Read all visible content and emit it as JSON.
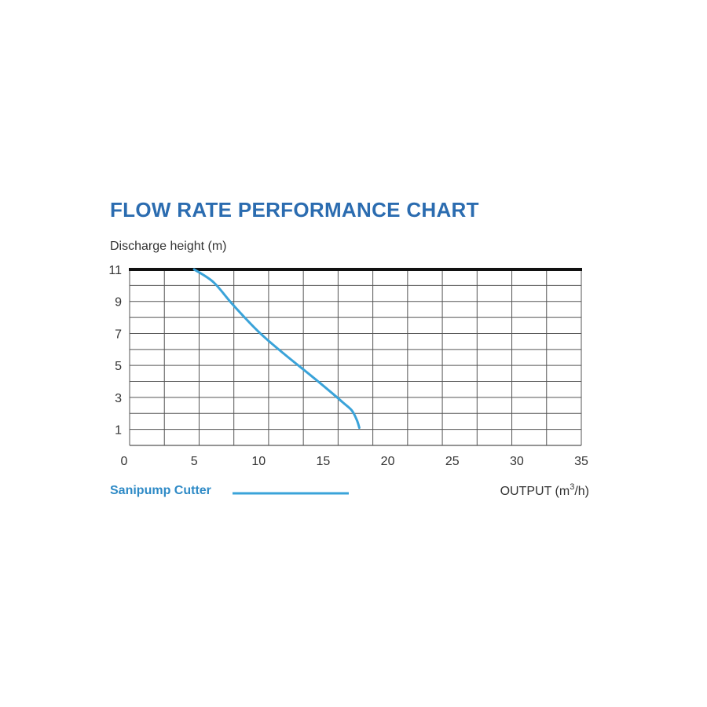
{
  "chart_data": {
    "type": "line",
    "title": "FLOW RATE PERFORMANCE CHART",
    "ylabel": "Discharge height (m)",
    "xlabel_main": "OUTPUT (m",
    "xlabel_sup": "3",
    "xlabel_end": "/h)",
    "xlim": [
      0,
      35
    ],
    "ylim": [
      0,
      11
    ],
    "x_ticks": [
      0,
      5,
      10,
      15,
      20,
      25,
      30,
      35
    ],
    "x_tick_labels": [
      "0",
      "5",
      "10",
      "15",
      "20",
      "25",
      "30",
      "35"
    ],
    "y_ticks": [
      1,
      3,
      5,
      7,
      9,
      11
    ],
    "y_tick_labels": [
      "1",
      "3",
      "5",
      "7",
      "9",
      "11"
    ],
    "grid": true,
    "series": [
      {
        "name": "Sanipump Cutter",
        "color": "#3aa3d9",
        "x": [
          5.0,
          6.5,
          8.0,
          10.0,
          12.0,
          14.0,
          15.5,
          16.5,
          17.2,
          17.6,
          17.8
        ],
        "y": [
          11.0,
          10.2,
          8.8,
          7.1,
          5.7,
          4.4,
          3.4,
          2.7,
          2.2,
          1.6,
          1.1
        ]
      }
    ],
    "legend_position": "bottom-left",
    "colors": {
      "title": "#2b6cb0",
      "legend_text": "#2e8ac6",
      "grid": "#555555",
      "top_border": "#111111"
    }
  }
}
